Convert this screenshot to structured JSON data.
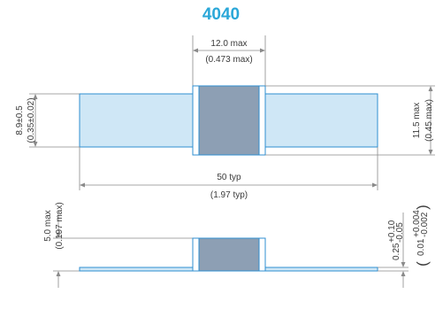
{
  "title": "4040",
  "top_view": {
    "width_max": "12.0 max",
    "width_max_in": "(0.473 max)",
    "lead_height": "8.9±0.5",
    "lead_height_in": "(0.35±0.02)",
    "body_height_max": "11.5 max",
    "body_height_max_in": "(0.45 max)",
    "overall_length": "50 typ",
    "overall_length_in": "(1.97 typ)"
  },
  "side_view": {
    "height_max": "5.0 max",
    "height_max_in": "(0.197 max)",
    "lead_thickness": "0.25",
    "lead_thickness_tol_plus": "+0.10",
    "lead_thickness_tol_minus": "-0.05",
    "lead_thickness_in": "0.01",
    "lead_thickness_in_tol_plus": "+0.004",
    "lead_thickness_in_tol_minus": "-0.002"
  },
  "colors": {
    "lead_fill": "#cfe7f6",
    "lead_stroke": "#2f8fd0",
    "body_fill": "#8d9fb4",
    "dim_line": "#8a8a8a",
    "title": "#2aa7d8"
  }
}
